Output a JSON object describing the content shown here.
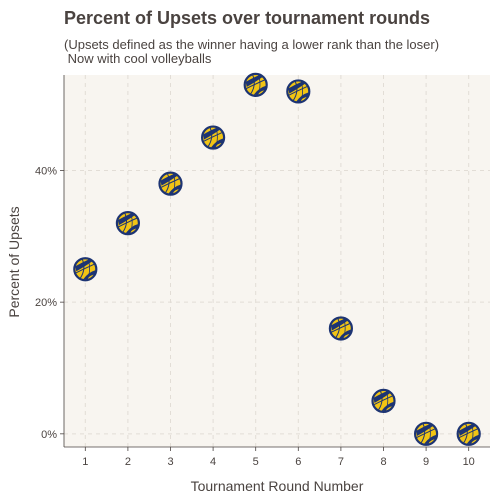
{
  "chart_data": {
    "type": "scatter",
    "title": "Percent of Upsets over tournament rounds",
    "subtitle_lines": [
      "(Upsets defined as the winner having a lower rank than the loser)",
      " Now with cool volleyballs"
    ],
    "xlabel": "Tournament Round Number",
    "ylabel": "Percent of Upsets",
    "x": [
      1,
      2,
      3,
      4,
      5,
      6,
      7,
      8,
      9,
      10
    ],
    "y": [
      0.25,
      0.32,
      0.38,
      0.45,
      0.53,
      0.52,
      0.16,
      0.05,
      0.0,
      0.0
    ],
    "xlim": [
      0.5,
      10.5
    ],
    "ylim": [
      -0.02,
      0.545
    ],
    "xticks": [
      {
        "value": 1,
        "label": "1"
      },
      {
        "value": 2,
        "label": "2"
      },
      {
        "value": 3,
        "label": "3"
      },
      {
        "value": 4,
        "label": "4"
      },
      {
        "value": 5,
        "label": "5"
      },
      {
        "value": 6,
        "label": "6"
      },
      {
        "value": 7,
        "label": "7"
      },
      {
        "value": 8,
        "label": "8"
      },
      {
        "value": 9,
        "label": "9"
      },
      {
        "value": 10,
        "label": "10"
      }
    ],
    "yticks": [
      {
        "value": 0.0,
        "label": "0%"
      },
      {
        "value": 0.2,
        "label": "20%"
      },
      {
        "value": 0.4,
        "label": "40%"
      }
    ],
    "grid": true,
    "marker": "volleyball-icon",
    "colors": {
      "panel_background": "#f8f5f0",
      "grid": "#e2ddd6",
      "axis_line": "#4a4340",
      "text": "#4a4340",
      "ball_yellow": "#f1c414",
      "ball_navy": "#1d3473"
    }
  }
}
